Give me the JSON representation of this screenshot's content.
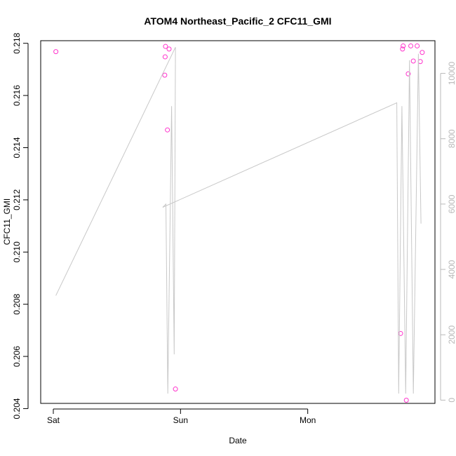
{
  "chart_data": {
    "type": "scatter",
    "title": "ATOM4 Northeast_Pacific_2 CFC11_GMI",
    "xlabel": "Date",
    "ylabel": "CFC11_GMI",
    "x_ticks": [
      "Sat",
      "Sun",
      "Mon"
    ],
    "y_left": {
      "range": [
        0.2042,
        0.2181
      ],
      "ticks": [
        "0.204",
        "0.206",
        "0.208",
        "0.210",
        "0.212",
        "0.214",
        "0.216",
        "0.218"
      ]
    },
    "y_right": {
      "range": [
        -100,
        11000
      ],
      "ticks": [
        "0",
        "2000",
        "4000",
        "6000",
        "8000",
        "10000"
      ]
    },
    "grid": false,
    "colors": {
      "points": "#ff33cc",
      "line": "#c8c8c8",
      "right_axis": "#b8b8b8",
      "frame": "#000000"
    },
    "series": [
      {
        "axis": "left",
        "style": "points",
        "points": [
          {
            "x": 0.02,
            "y": 0.21768
          },
          {
            "x": 0.876,
            "y": 0.21678
          },
          {
            "x": 0.879,
            "y": 0.21748
          },
          {
            "x": 0.882,
            "y": 0.21788
          },
          {
            "x": 0.897,
            "y": 0.21468
          },
          {
            "x": 0.91,
            "y": 0.21778
          },
          {
            "x": 0.96,
            "y": 0.20475
          },
          {
            "x": 2.73,
            "y": 0.20688
          },
          {
            "x": 2.745,
            "y": 0.21778
          },
          {
            "x": 2.75,
            "y": 0.2179
          },
          {
            "x": 2.775,
            "y": 0.20432
          },
          {
            "x": 2.79,
            "y": 0.21683
          },
          {
            "x": 2.81,
            "y": 0.2179
          },
          {
            "x": 2.83,
            "y": 0.21732
          },
          {
            "x": 2.86,
            "y": 0.2179
          },
          {
            "x": 2.885,
            "y": 0.2173
          },
          {
            "x": 2.9,
            "y": 0.21765
          }
        ]
      },
      {
        "axis": "right",
        "style": "line",
        "points": [
          {
            "x": 0.02,
            "y": 3200
          },
          {
            "x": 0.96,
            "y": 10800
          },
          {
            "x": 0.95,
            "y": 1400
          },
          {
            "x": 0.93,
            "y": 9000
          },
          {
            "x": 0.9,
            "y": 200
          },
          {
            "x": 0.885,
            "y": 6000
          },
          {
            "x": 0.86,
            "y": 5900
          },
          {
            "x": 2.7,
            "y": 9100
          },
          {
            "x": 2.715,
            "y": 200
          },
          {
            "x": 2.74,
            "y": 9000
          },
          {
            "x": 2.77,
            "y": 200
          },
          {
            "x": 2.8,
            "y": 10400
          },
          {
            "x": 2.83,
            "y": 200
          },
          {
            "x": 2.87,
            "y": 10600
          },
          {
            "x": 2.89,
            "y": 5400
          }
        ]
      }
    ]
  }
}
